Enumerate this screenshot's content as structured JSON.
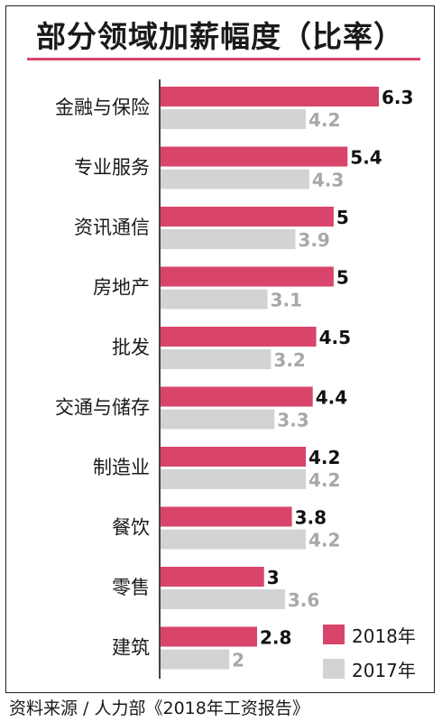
{
  "header": {
    "title": "部分领域加薪幅度（比率）"
  },
  "footer": {
    "source": "资料来源 / 人力部《2018年工资报告》"
  },
  "colors": {
    "series_2018": "#d9456a",
    "series_2017": "#d3d3d3"
  },
  "chart_data": {
    "type": "bar",
    "orientation": "horizontal",
    "title": "部分领域加薪幅度（比率）",
    "categories": [
      "金融与保险",
      "专业服务",
      "资讯通信",
      "房地产",
      "批发",
      "交通与储存",
      "制造业",
      "餐饮",
      "零售",
      "建筑"
    ],
    "series": [
      {
        "name": "2018年",
        "values": [
          6.3,
          5.4,
          5,
          5,
          4.5,
          4.4,
          4.2,
          3.8,
          3,
          2.8
        ],
        "labels": [
          "6.3",
          "5.4",
          "5",
          "5",
          "4.5",
          "4.4",
          "4.2",
          "3.8",
          "3",
          "2.8"
        ]
      },
      {
        "name": "2017年",
        "values": [
          4.2,
          4.3,
          3.9,
          3.1,
          3.2,
          3.3,
          4.2,
          4.2,
          3.6,
          2
        ],
        "labels": [
          "4.2",
          "4.3",
          "3.9",
          "3.1",
          "3.2",
          "3.3",
          "4.2",
          "4.2",
          "3.6",
          "2"
        ]
      }
    ],
    "legend_position": "bottom-right",
    "grid": false,
    "xlim": [
      0,
      6.3
    ]
  }
}
